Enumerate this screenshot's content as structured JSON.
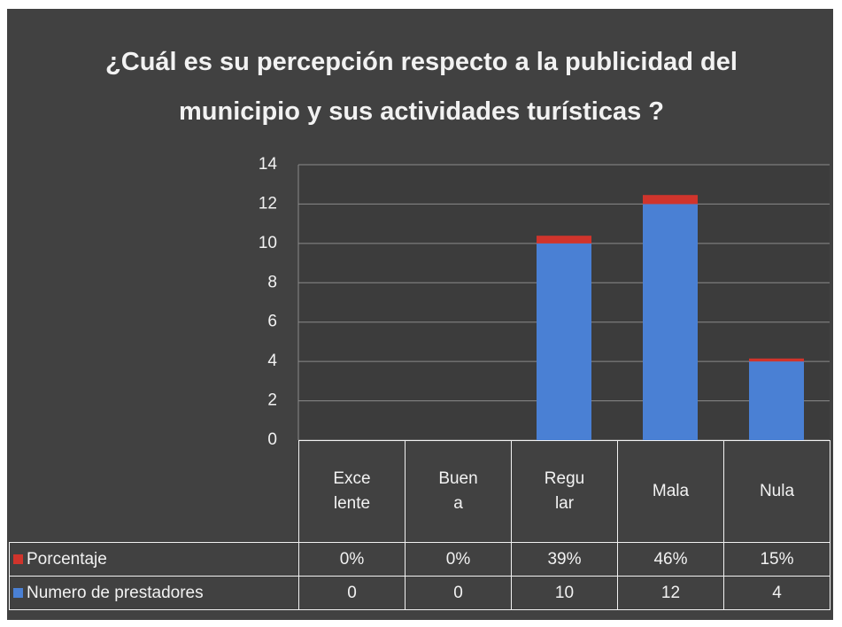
{
  "chart_data": {
    "type": "stacked_bar",
    "title": "¿Cuál es su percepción respecto a la publicidad del municipio y sus actividades turísticas ?",
    "categories": [
      "Excelente",
      "Buena",
      "Regular",
      "Mala",
      "Nula"
    ],
    "series": [
      {
        "name": "Numero de prestadores",
        "color": "#4a80d4",
        "values": [
          0,
          0,
          10,
          12,
          4
        ]
      },
      {
        "name": "Porcentaje",
        "color": "#d0342c",
        "values": [
          0,
          0,
          0.39,
          0.46,
          0.15
        ],
        "value_labels": [
          "0%",
          "0%",
          "39%",
          "46%",
          "15%"
        ]
      }
    ],
    "ylim": [
      0,
      14
    ],
    "yticks": [
      0,
      2,
      4,
      6,
      8,
      10,
      12,
      14
    ],
    "grid": true
  }
}
